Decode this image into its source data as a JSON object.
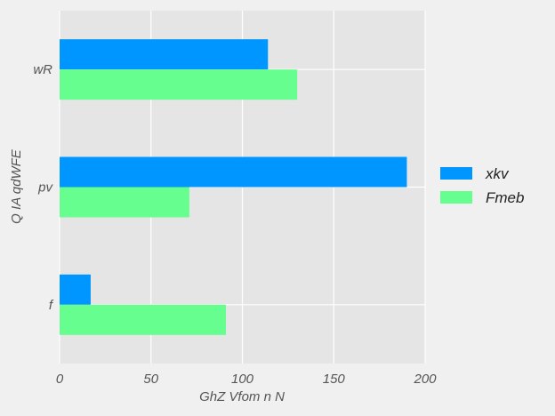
{
  "chart_data": {
    "type": "bar",
    "orientation": "horizontal",
    "categories": [
      "f",
      "pv",
      "wR"
    ],
    "series": [
      {
        "name": "xkv",
        "values": [
          17,
          190,
          114
        ],
        "color": "#0096ff"
      },
      {
        "name": "Fmeb",
        "values": [
          91,
          71,
          130
        ],
        "color": "#66ff8f"
      }
    ],
    "xlabel": "GhZ Vfom n N",
    "ylabel": "Q IA qdWFE",
    "xlim": [
      0,
      200
    ],
    "xticks": [
      0,
      50,
      100,
      150,
      200
    ],
    "grid": true,
    "legend_position": "right"
  }
}
